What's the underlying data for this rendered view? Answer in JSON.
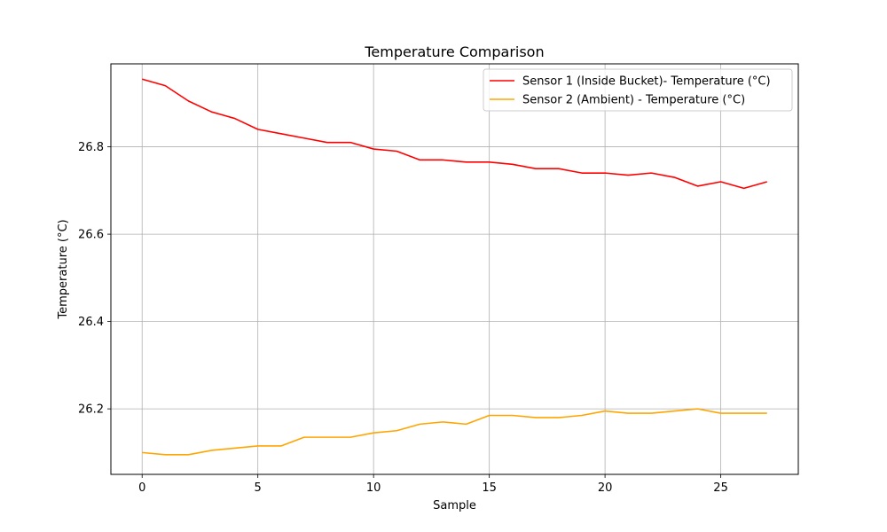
{
  "chart_data": {
    "type": "line",
    "title": "Temperature Comparison",
    "xlabel": "Sample",
    "ylabel": "Temperature (°C)",
    "xlim": [
      -1.35,
      28.35
    ],
    "ylim": [
      26.05,
      26.99
    ],
    "xticks": [
      0,
      5,
      10,
      15,
      20,
      25
    ],
    "yticks": [
      26.2,
      26.4,
      26.6,
      26.8
    ],
    "xtick_labels": [
      "0",
      "5",
      "10",
      "15",
      "20",
      "25"
    ],
    "ytick_labels": [
      "26.2",
      "26.4",
      "26.6",
      "26.8"
    ],
    "grid": true,
    "legend_position": "top-right",
    "x": [
      0,
      1,
      2,
      3,
      4,
      5,
      6,
      7,
      8,
      9,
      10,
      11,
      12,
      13,
      14,
      15,
      16,
      17,
      18,
      19,
      20,
      21,
      22,
      23,
      24,
      25,
      26,
      27
    ],
    "series": [
      {
        "name": "Sensor 1 (Inside Bucket)- Temperature (°C)",
        "color": "#ff0000",
        "values": [
          26.955,
          26.94,
          26.905,
          26.88,
          26.865,
          26.84,
          26.83,
          26.82,
          26.81,
          26.81,
          26.795,
          26.79,
          26.77,
          26.77,
          26.765,
          26.765,
          26.76,
          26.75,
          26.75,
          26.74,
          26.74,
          26.735,
          26.74,
          26.73,
          26.71,
          26.72,
          26.705,
          26.72
        ]
      },
      {
        "name": "Sensor 2 (Ambient) - Temperature (°C)",
        "color": "#ffa500",
        "values": [
          26.1,
          26.095,
          26.095,
          26.105,
          26.11,
          26.115,
          26.115,
          26.135,
          26.135,
          26.135,
          26.145,
          26.15,
          26.165,
          26.17,
          26.165,
          26.185,
          26.185,
          26.18,
          26.18,
          26.185,
          26.195,
          26.19,
          26.19,
          26.195,
          26.2,
          26.19,
          26.19,
          26.19
        ]
      }
    ]
  }
}
